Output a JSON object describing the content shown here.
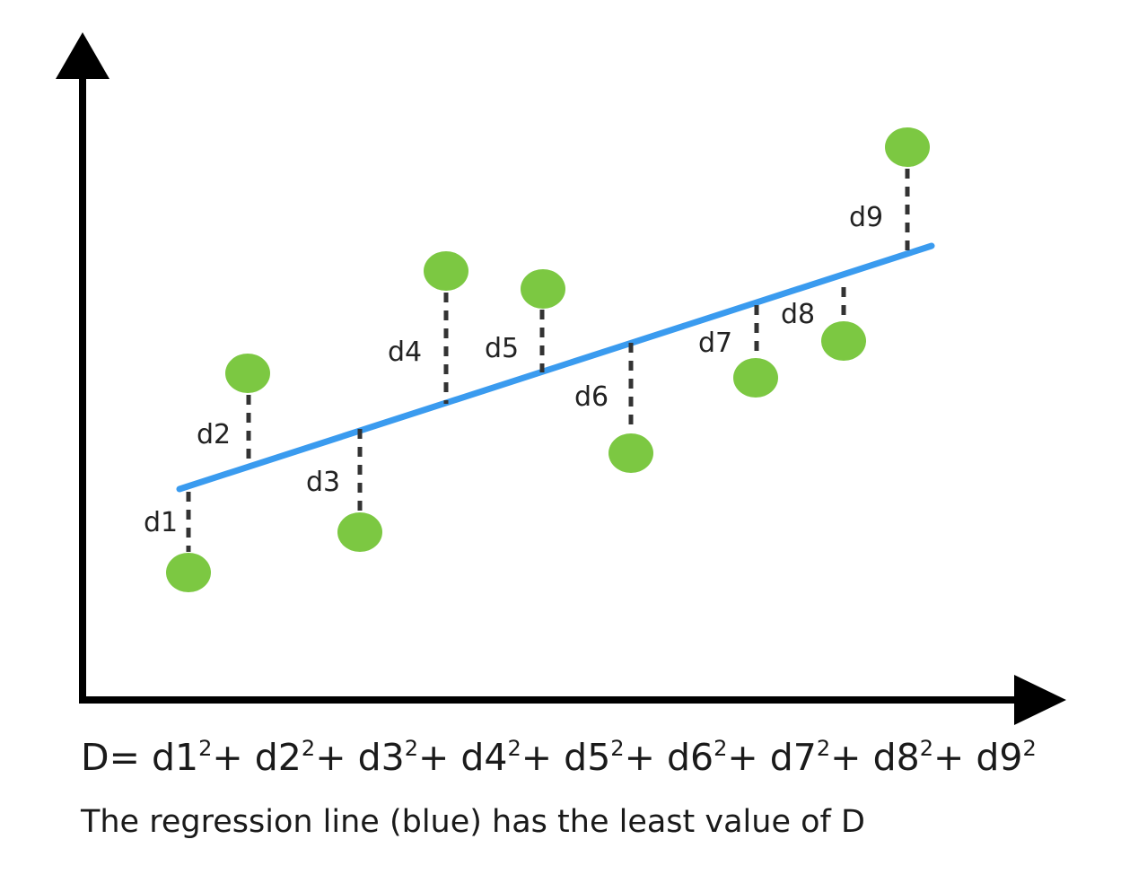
{
  "colors": {
    "axis": "#000000",
    "regression_line": "#3a9bef",
    "points": "#7cc842",
    "residual": "#333333",
    "text": "#1a1a1a"
  },
  "formula": {
    "lhs": "D=",
    "terms": [
      {
        "base": "d1",
        "exp": "2",
        "sep": "+"
      },
      {
        "base": "d2",
        "exp": "2",
        "sep": "+"
      },
      {
        "base": "d3",
        "exp": "2",
        "sep": "+"
      },
      {
        "base": "d4",
        "exp": "2",
        "sep": "+"
      },
      {
        "base": "d5",
        "exp": "2",
        "sep": "+"
      },
      {
        "base": "d6",
        "exp": "2",
        "sep": "+"
      },
      {
        "base": "d7",
        "exp": "2",
        "sep": "+"
      },
      {
        "base": "d8",
        "exp": "2",
        "sep": "+"
      },
      {
        "base": "d9",
        "exp": "2",
        "sep": ""
      }
    ]
  },
  "caption": "The regression line (blue) has the least value of D",
  "residual_labels": [
    "d1",
    "d2",
    "d3",
    "d4",
    "d5",
    "d6",
    "d7",
    "d8",
    "d9"
  ]
}
